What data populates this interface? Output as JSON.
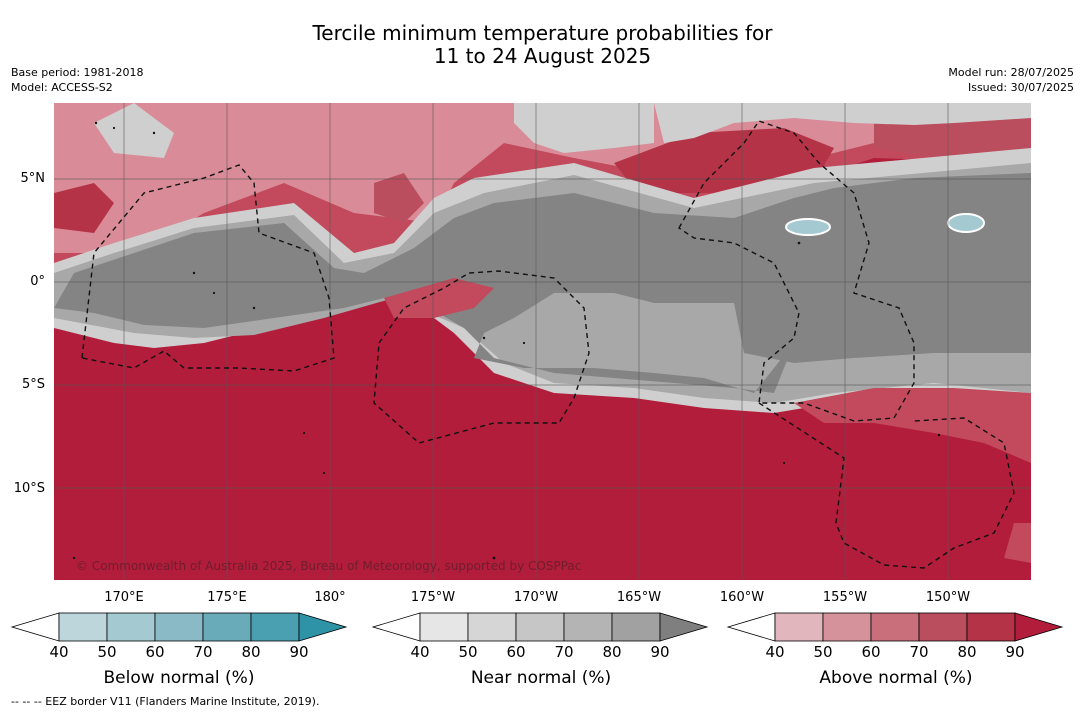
{
  "title_line1": "Tercile minimum temperature probabilities for",
  "title_line2": "11 to 24 August 2025",
  "base_period": "Base period: 1981-2018",
  "model": "Model: ACCESS-S2",
  "model_run": "Model run: 28/07/2025",
  "issued": "Issued: 30/07/2025",
  "credit": "© Commonwealth of Australia 2025, Bureau of Meteorology, supported by COSPPac",
  "footer": "--  --  -- EEZ border V11 (Flanders Marine Institute, 2019).",
  "lat_labels": [
    "5°N",
    "0°",
    "5°S",
    "10°S"
  ],
  "lon_labels": [
    "170°E",
    "175°E",
    "180°",
    "175°W",
    "170°W",
    "165°W",
    "160°W",
    "155°W",
    "150°W"
  ],
  "colorbars": [
    {
      "label": "Below normal (%)",
      "ticks": [
        "40",
        "50",
        "60",
        "70",
        "80",
        "90"
      ],
      "colors": [
        "#ffffff",
        "#bcd6dc",
        "#a4c9d0",
        "#89bac5",
        "#6aabb9",
        "#4aa0b0",
        "#2e93a6"
      ]
    },
    {
      "label": "Near normal (%)",
      "ticks": [
        "40",
        "50",
        "60",
        "70",
        "80",
        "90"
      ],
      "colors": [
        "#ffffff",
        "#e6e6e6",
        "#d6d6d6",
        "#c6c6c6",
        "#b4b4b4",
        "#a1a1a1",
        "#7f7f7f"
      ]
    },
    {
      "label": "Above normal (%)",
      "ticks": [
        "40",
        "50",
        "60",
        "70",
        "80",
        "90"
      ],
      "colors": [
        "#ffffff",
        "#e2b6bd",
        "#d6929b",
        "#c86f7b",
        "#bb4e5e",
        "#b53347",
        "#b21d3b"
      ]
    }
  ],
  "colors": {
    "above_strong": "#b21d3b",
    "above_mid": "#c24a5c",
    "above_light": "#d98c98",
    "near_strong": "#848484",
    "near_mid": "#a8a8a8",
    "near_light": "#cfcfcf",
    "below_light": "#a4c9d0",
    "grid": "#555555",
    "eez": "#111111"
  }
}
